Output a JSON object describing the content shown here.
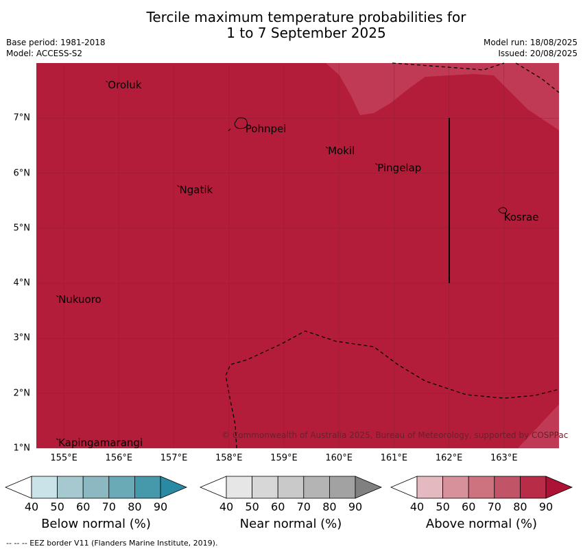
{
  "title": {
    "line1": "Tercile maximum temperature probabilities for",
    "line2": "1 to 7 September 2025"
  },
  "meta": {
    "base_period": "Base period: 1981-2018",
    "model": "Model: ACCESS-S2",
    "model_run": "Model run: 18/08/2025",
    "issued": "Issued: 20/08/2025"
  },
  "map": {
    "fill_color": "#b31d3a",
    "light_region_color": "#c13a55",
    "lon_range": [
      154.5,
      164.0
    ],
    "lat_range": [
      1.0,
      8.0
    ],
    "x_ticks": [
      "155°E",
      "156°E",
      "157°E",
      "158°E",
      "159°E",
      "160°E",
      "161°E",
      "162°E",
      "163°E"
    ],
    "y_ticks": [
      "7°N",
      "6°N",
      "5°N",
      "4°N",
      "3°N",
      "2°N",
      "1°N"
    ],
    "places": [
      {
        "name": "Oroluk",
        "lon": 155.8,
        "lat": 7.6
      },
      {
        "name": "Pohnpei",
        "lon": 158.3,
        "lat": 6.8
      },
      {
        "name": "Mokil",
        "lon": 159.8,
        "lat": 6.4
      },
      {
        "name": "Pingelap",
        "lon": 160.7,
        "lat": 6.1
      },
      {
        "name": "Ngatik",
        "lon": 157.1,
        "lat": 5.7
      },
      {
        "name": "Kosrae",
        "lon": 163.0,
        "lat": 5.2
      },
      {
        "name": "Nukuoro",
        "lon": 154.9,
        "lat": 3.7
      },
      {
        "name": "Kapingamarangi",
        "lon": 154.9,
        "lat": 1.1
      }
    ],
    "copyright": "© Commonwealth of Australia 2025, Bureau of Meteorology, supported by COSPPac"
  },
  "colorbars": [
    {
      "title": "Below normal (%)",
      "colors": [
        "#c9e3e9",
        "#a6c9cf",
        "#8bb8c1",
        "#6aaab7",
        "#4699aa",
        "#2a8aa3"
      ]
    },
    {
      "title": "Near normal (%)",
      "colors": [
        "#e6e6e6",
        "#d7d7d7",
        "#c9c9c9",
        "#b4b4b4",
        "#a2a2a2",
        "#808080"
      ]
    },
    {
      "title": "Above normal (%)",
      "colors": [
        "#e4b9c0",
        "#d6919b",
        "#cc737f",
        "#c25467",
        "#b82c47",
        "#ac1236"
      ]
    }
  ],
  "colorbar_ticks": [
    "40",
    "50",
    "60",
    "70",
    "80",
    "90"
  ],
  "footer": "--  --  -- EEZ border V11 (Flanders Marine Institute, 2019)."
}
